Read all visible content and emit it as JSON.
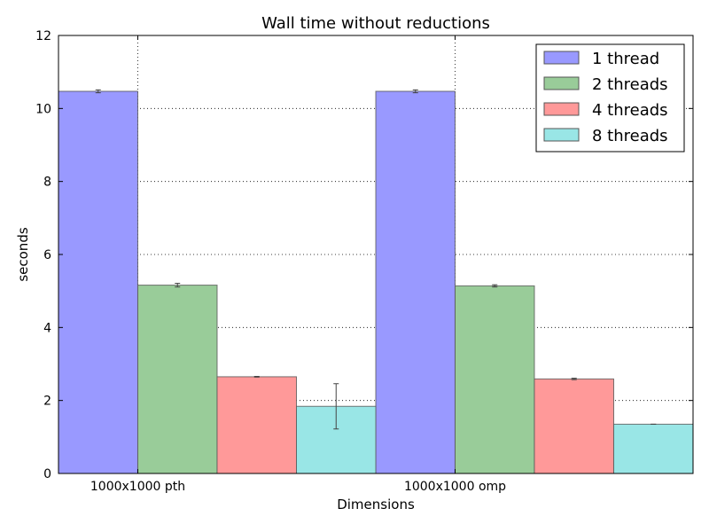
{
  "chart_data": {
    "type": "bar",
    "title": "Wall time without reductions",
    "xlabel": "Dimensions",
    "ylabel": "seconds",
    "ylim": [
      0,
      12
    ],
    "yticks": [
      "0",
      "2",
      "4",
      "6",
      "8",
      "10",
      "12"
    ],
    "categories": [
      "1000x1000 pth",
      "1000x1000 omp"
    ],
    "grid": true,
    "legend_position": "top-right",
    "series": [
      {
        "name": "1 thread",
        "color": "#9999ff",
        "values": [
          10.47,
          10.47
        ],
        "errors": [
          0.04,
          0.04
        ]
      },
      {
        "name": "2 threads",
        "color": "#99cc99",
        "values": [
          5.16,
          5.14
        ],
        "errors": [
          0.05,
          0.03
        ]
      },
      {
        "name": "4 threads",
        "color": "#ff9999",
        "values": [
          2.65,
          2.59
        ],
        "errors": [
          0.01,
          0.02
        ]
      },
      {
        "name": "8 threads",
        "color": "#99e6e6",
        "values": [
          1.84,
          1.35
        ],
        "errors": [
          0.62,
          0.0
        ]
      }
    ]
  }
}
